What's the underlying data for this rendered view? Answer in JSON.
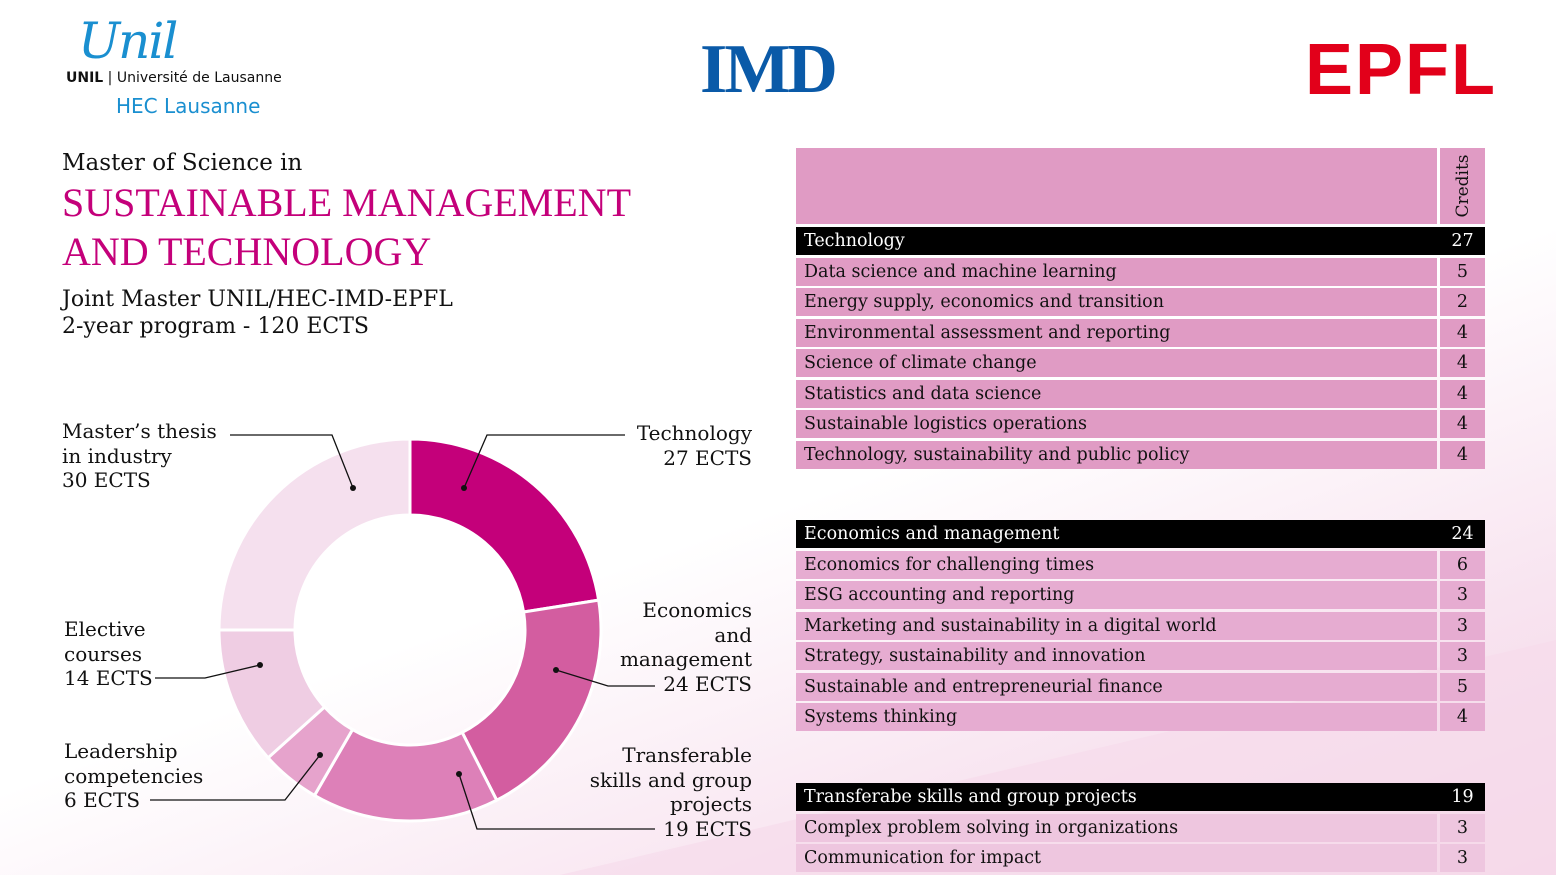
{
  "logos": {
    "unil_script": "Unil",
    "unil_line_bold": "UNIL",
    "unil_line": "Université de Lausanne",
    "hec": "HEC Lausanne",
    "imd": "IMD",
    "epfl": "EPFL"
  },
  "heading": {
    "pre": "Master of Science in",
    "title_line1": "SUSTAINABLE MANAGEMENT",
    "title_line2": "AND TECHNOLOGY",
    "sub_line1": "Joint Master UNIL/HEC-IMD-EPFL",
    "sub_line2": "2-year program - 120 ECTS"
  },
  "chart_data": {
    "type": "pie",
    "variant": "donut",
    "total": 120,
    "unit": "ECTS",
    "slices": [
      {
        "label": "Technology",
        "value": 27,
        "color": "#c4007a"
      },
      {
        "label": "Economics and management",
        "value": 24,
        "color": "#d35da0"
      },
      {
        "label": "Transferable skills and group projects",
        "value": 19,
        "color": "#dd80b8"
      },
      {
        "label": "Leadership competencies",
        "value": 6,
        "color": "#e6a3cc"
      },
      {
        "label": "Elective courses",
        "value": 14,
        "color": "#efcde3"
      },
      {
        "label": "Master’s thesis in industry",
        "value": 30,
        "color": "#f5e0ee"
      }
    ]
  },
  "labels": {
    "tech": [
      "Technology",
      "27 ECTS"
    ],
    "econ": [
      "Economics",
      "and",
      "management",
      "24 ECTS"
    ],
    "trans": [
      "Transferable",
      "skills and group",
      "projects",
      "19 ECTS"
    ],
    "lead": [
      "Leadership",
      "competencies",
      "6 ECTS"
    ],
    "elec": [
      "Elective",
      "courses",
      "14 ECTS"
    ],
    "thesis": [
      "Master’s thesis",
      "in industry",
      "30 ECTS"
    ]
  },
  "table": {
    "credits_header": "Credits",
    "sections": [
      {
        "name": "Technology",
        "credits": "27",
        "courses": [
          [
            "Data science and machine learning",
            "5"
          ],
          [
            "Energy supply, economics and transition",
            "2"
          ],
          [
            "Environmental assessment and reporting",
            "4"
          ],
          [
            "Science of climate change",
            "4"
          ],
          [
            "Statistics and data science",
            "4"
          ],
          [
            "Sustainable logistics operations",
            "4"
          ],
          [
            "Technology, sustainability and public policy",
            "4"
          ]
        ]
      },
      {
        "name": "Economics and management",
        "credits": "24",
        "courses": [
          [
            "Economics for challenging times",
            "6"
          ],
          [
            "ESG accounting and reporting",
            "3"
          ],
          [
            "Marketing and sustainability in a digital world",
            "3"
          ],
          [
            "Strategy, sustainability and innovation",
            "3"
          ],
          [
            "Sustainable and entrepreneurial finance",
            "5"
          ],
          [
            "Systems thinking",
            "4"
          ]
        ]
      },
      {
        "name": "Transferabe skills and group projects",
        "credits": "19",
        "courses": [
          [
            "Complex problem solving in organizations",
            "3"
          ],
          [
            "Communication for impact",
            "3"
          ]
        ]
      }
    ]
  }
}
